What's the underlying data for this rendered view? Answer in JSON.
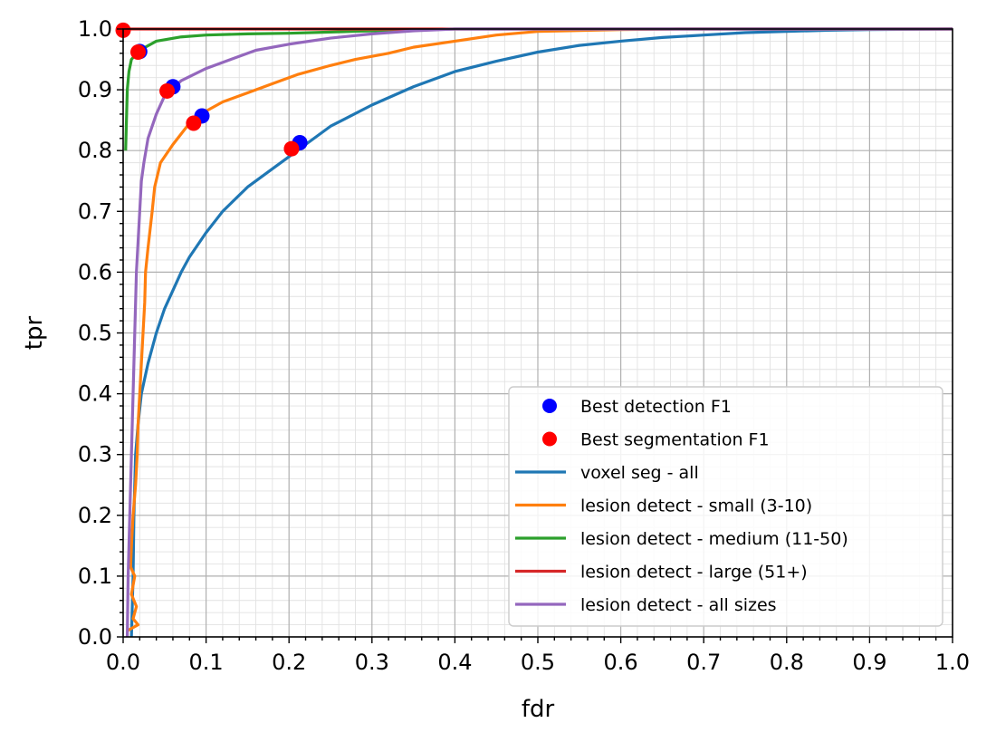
{
  "chart_data": {
    "type": "line",
    "title": "",
    "xlabel": "fdr",
    "ylabel": "tpr",
    "xlim": [
      0,
      1
    ],
    "ylim": [
      0,
      1
    ],
    "grid": true,
    "minor_grid": true,
    "legend_position": "lower right",
    "x_ticks": [
      "0.0",
      "0.1",
      "0.2",
      "0.3",
      "0.4",
      "0.5",
      "0.6",
      "0.7",
      "0.8",
      "0.9",
      "1.0"
    ],
    "y_ticks": [
      "0.0",
      "0.1",
      "0.2",
      "0.3",
      "0.4",
      "0.5",
      "0.6",
      "0.7",
      "0.8",
      "0.9",
      "1.0"
    ],
    "series": [
      {
        "name": "voxel seg - all",
        "color": "#1f77b4",
        "points": [
          [
            0.01,
            0.0
          ],
          [
            0.012,
            0.1
          ],
          [
            0.013,
            0.2
          ],
          [
            0.015,
            0.3
          ],
          [
            0.018,
            0.35
          ],
          [
            0.022,
            0.4
          ],
          [
            0.03,
            0.45
          ],
          [
            0.04,
            0.5
          ],
          [
            0.05,
            0.54
          ],
          [
            0.06,
            0.57
          ],
          [
            0.07,
            0.6
          ],
          [
            0.08,
            0.625
          ],
          [
            0.1,
            0.665
          ],
          [
            0.12,
            0.7
          ],
          [
            0.15,
            0.74
          ],
          [
            0.18,
            0.77
          ],
          [
            0.2,
            0.79
          ],
          [
            0.22,
            0.81
          ],
          [
            0.25,
            0.84
          ],
          [
            0.3,
            0.875
          ],
          [
            0.35,
            0.905
          ],
          [
            0.4,
            0.93
          ],
          [
            0.45,
            0.947
          ],
          [
            0.5,
            0.962
          ],
          [
            0.55,
            0.973
          ],
          [
            0.6,
            0.98
          ],
          [
            0.65,
            0.986
          ],
          [
            0.7,
            0.99
          ],
          [
            0.75,
            0.994
          ],
          [
            0.8,
            0.996
          ],
          [
            0.85,
            0.998
          ],
          [
            0.9,
            0.999
          ],
          [
            1.0,
            1.0
          ]
        ]
      },
      {
        "name": "lesion detect - small (3-10)",
        "color": "#ff7f0e",
        "points": [
          [
            0.005,
            0.01
          ],
          [
            0.018,
            0.02
          ],
          [
            0.012,
            0.03
          ],
          [
            0.016,
            0.05
          ],
          [
            0.01,
            0.07
          ],
          [
            0.014,
            0.1
          ],
          [
            0.009,
            0.115
          ],
          [
            0.01,
            0.15
          ],
          [
            0.012,
            0.2
          ],
          [
            0.015,
            0.25
          ],
          [
            0.017,
            0.3
          ],
          [
            0.018,
            0.35
          ],
          [
            0.02,
            0.4
          ],
          [
            0.022,
            0.45
          ],
          [
            0.024,
            0.5
          ],
          [
            0.026,
            0.55
          ],
          [
            0.027,
            0.6
          ],
          [
            0.03,
            0.64
          ],
          [
            0.035,
            0.7
          ],
          [
            0.038,
            0.74
          ],
          [
            0.045,
            0.78
          ],
          [
            0.06,
            0.81
          ],
          [
            0.08,
            0.845
          ],
          [
            0.1,
            0.865
          ],
          [
            0.12,
            0.88
          ],
          [
            0.15,
            0.895
          ],
          [
            0.18,
            0.91
          ],
          [
            0.21,
            0.925
          ],
          [
            0.25,
            0.94
          ],
          [
            0.28,
            0.95
          ],
          [
            0.32,
            0.96
          ],
          [
            0.35,
            0.97
          ],
          [
            0.4,
            0.98
          ],
          [
            0.45,
            0.99
          ],
          [
            0.5,
            0.996
          ],
          [
            0.6,
            0.999
          ],
          [
            0.67,
            1.0
          ],
          [
            1.0,
            1.0
          ]
        ]
      },
      {
        "name": "lesion detect - medium (11-50)",
        "color": "#2ca02c",
        "points": [
          [
            0.003,
            0.8
          ],
          [
            0.004,
            0.85
          ],
          [
            0.005,
            0.9
          ],
          [
            0.007,
            0.93
          ],
          [
            0.01,
            0.95
          ],
          [
            0.02,
            0.965
          ],
          [
            0.04,
            0.98
          ],
          [
            0.07,
            0.987
          ],
          [
            0.1,
            0.99
          ],
          [
            0.15,
            0.992
          ],
          [
            0.2,
            0.993
          ],
          [
            0.25,
            0.995
          ],
          [
            0.3,
            0.997
          ],
          [
            0.35,
            0.999
          ],
          [
            0.4,
            1.0
          ],
          [
            1.0,
            1.0
          ]
        ]
      },
      {
        "name": "lesion detect - large (51+)",
        "color": "#d62728",
        "points": [
          [
            0.0,
            0.995
          ],
          [
            0.0,
            1.0
          ],
          [
            1.0,
            1.0
          ]
        ]
      },
      {
        "name": "lesion detect - all sizes",
        "color": "#9467bd",
        "points": [
          [
            0.005,
            0.0
          ],
          [
            0.006,
            0.1
          ],
          [
            0.008,
            0.2
          ],
          [
            0.01,
            0.3
          ],
          [
            0.012,
            0.4
          ],
          [
            0.014,
            0.5
          ],
          [
            0.016,
            0.6
          ],
          [
            0.018,
            0.65
          ],
          [
            0.02,
            0.7
          ],
          [
            0.022,
            0.75
          ],
          [
            0.025,
            0.78
          ],
          [
            0.03,
            0.82
          ],
          [
            0.04,
            0.86
          ],
          [
            0.05,
            0.89
          ],
          [
            0.07,
            0.915
          ],
          [
            0.1,
            0.935
          ],
          [
            0.13,
            0.95
          ],
          [
            0.16,
            0.965
          ],
          [
            0.2,
            0.975
          ],
          [
            0.25,
            0.985
          ],
          [
            0.3,
            0.992
          ],
          [
            0.35,
            0.997
          ],
          [
            0.4,
            1.0
          ],
          [
            1.0,
            1.0
          ]
        ]
      }
    ],
    "markers": [
      {
        "name": "Best detection F1",
        "color": "#0000ff",
        "points": [
          [
            0.213,
            0.813
          ],
          [
            0.095,
            0.857
          ],
          [
            0.06,
            0.905
          ],
          [
            0.02,
            0.963
          ]
        ]
      },
      {
        "name": "Best segmentation F1",
        "color": "#ff0000",
        "points": [
          [
            0.203,
            0.803
          ],
          [
            0.085,
            0.845
          ],
          [
            0.053,
            0.898
          ],
          [
            0.018,
            0.962
          ],
          [
            0.0,
            0.998
          ]
        ]
      }
    ],
    "legend": [
      "Best detection F1",
      "Best segmentation F1",
      "voxel seg - all",
      "lesion detect - small (3-10)",
      "lesion detect - medium (11-50)",
      "lesion detect - large (51+)",
      "lesion detect - all sizes"
    ]
  }
}
